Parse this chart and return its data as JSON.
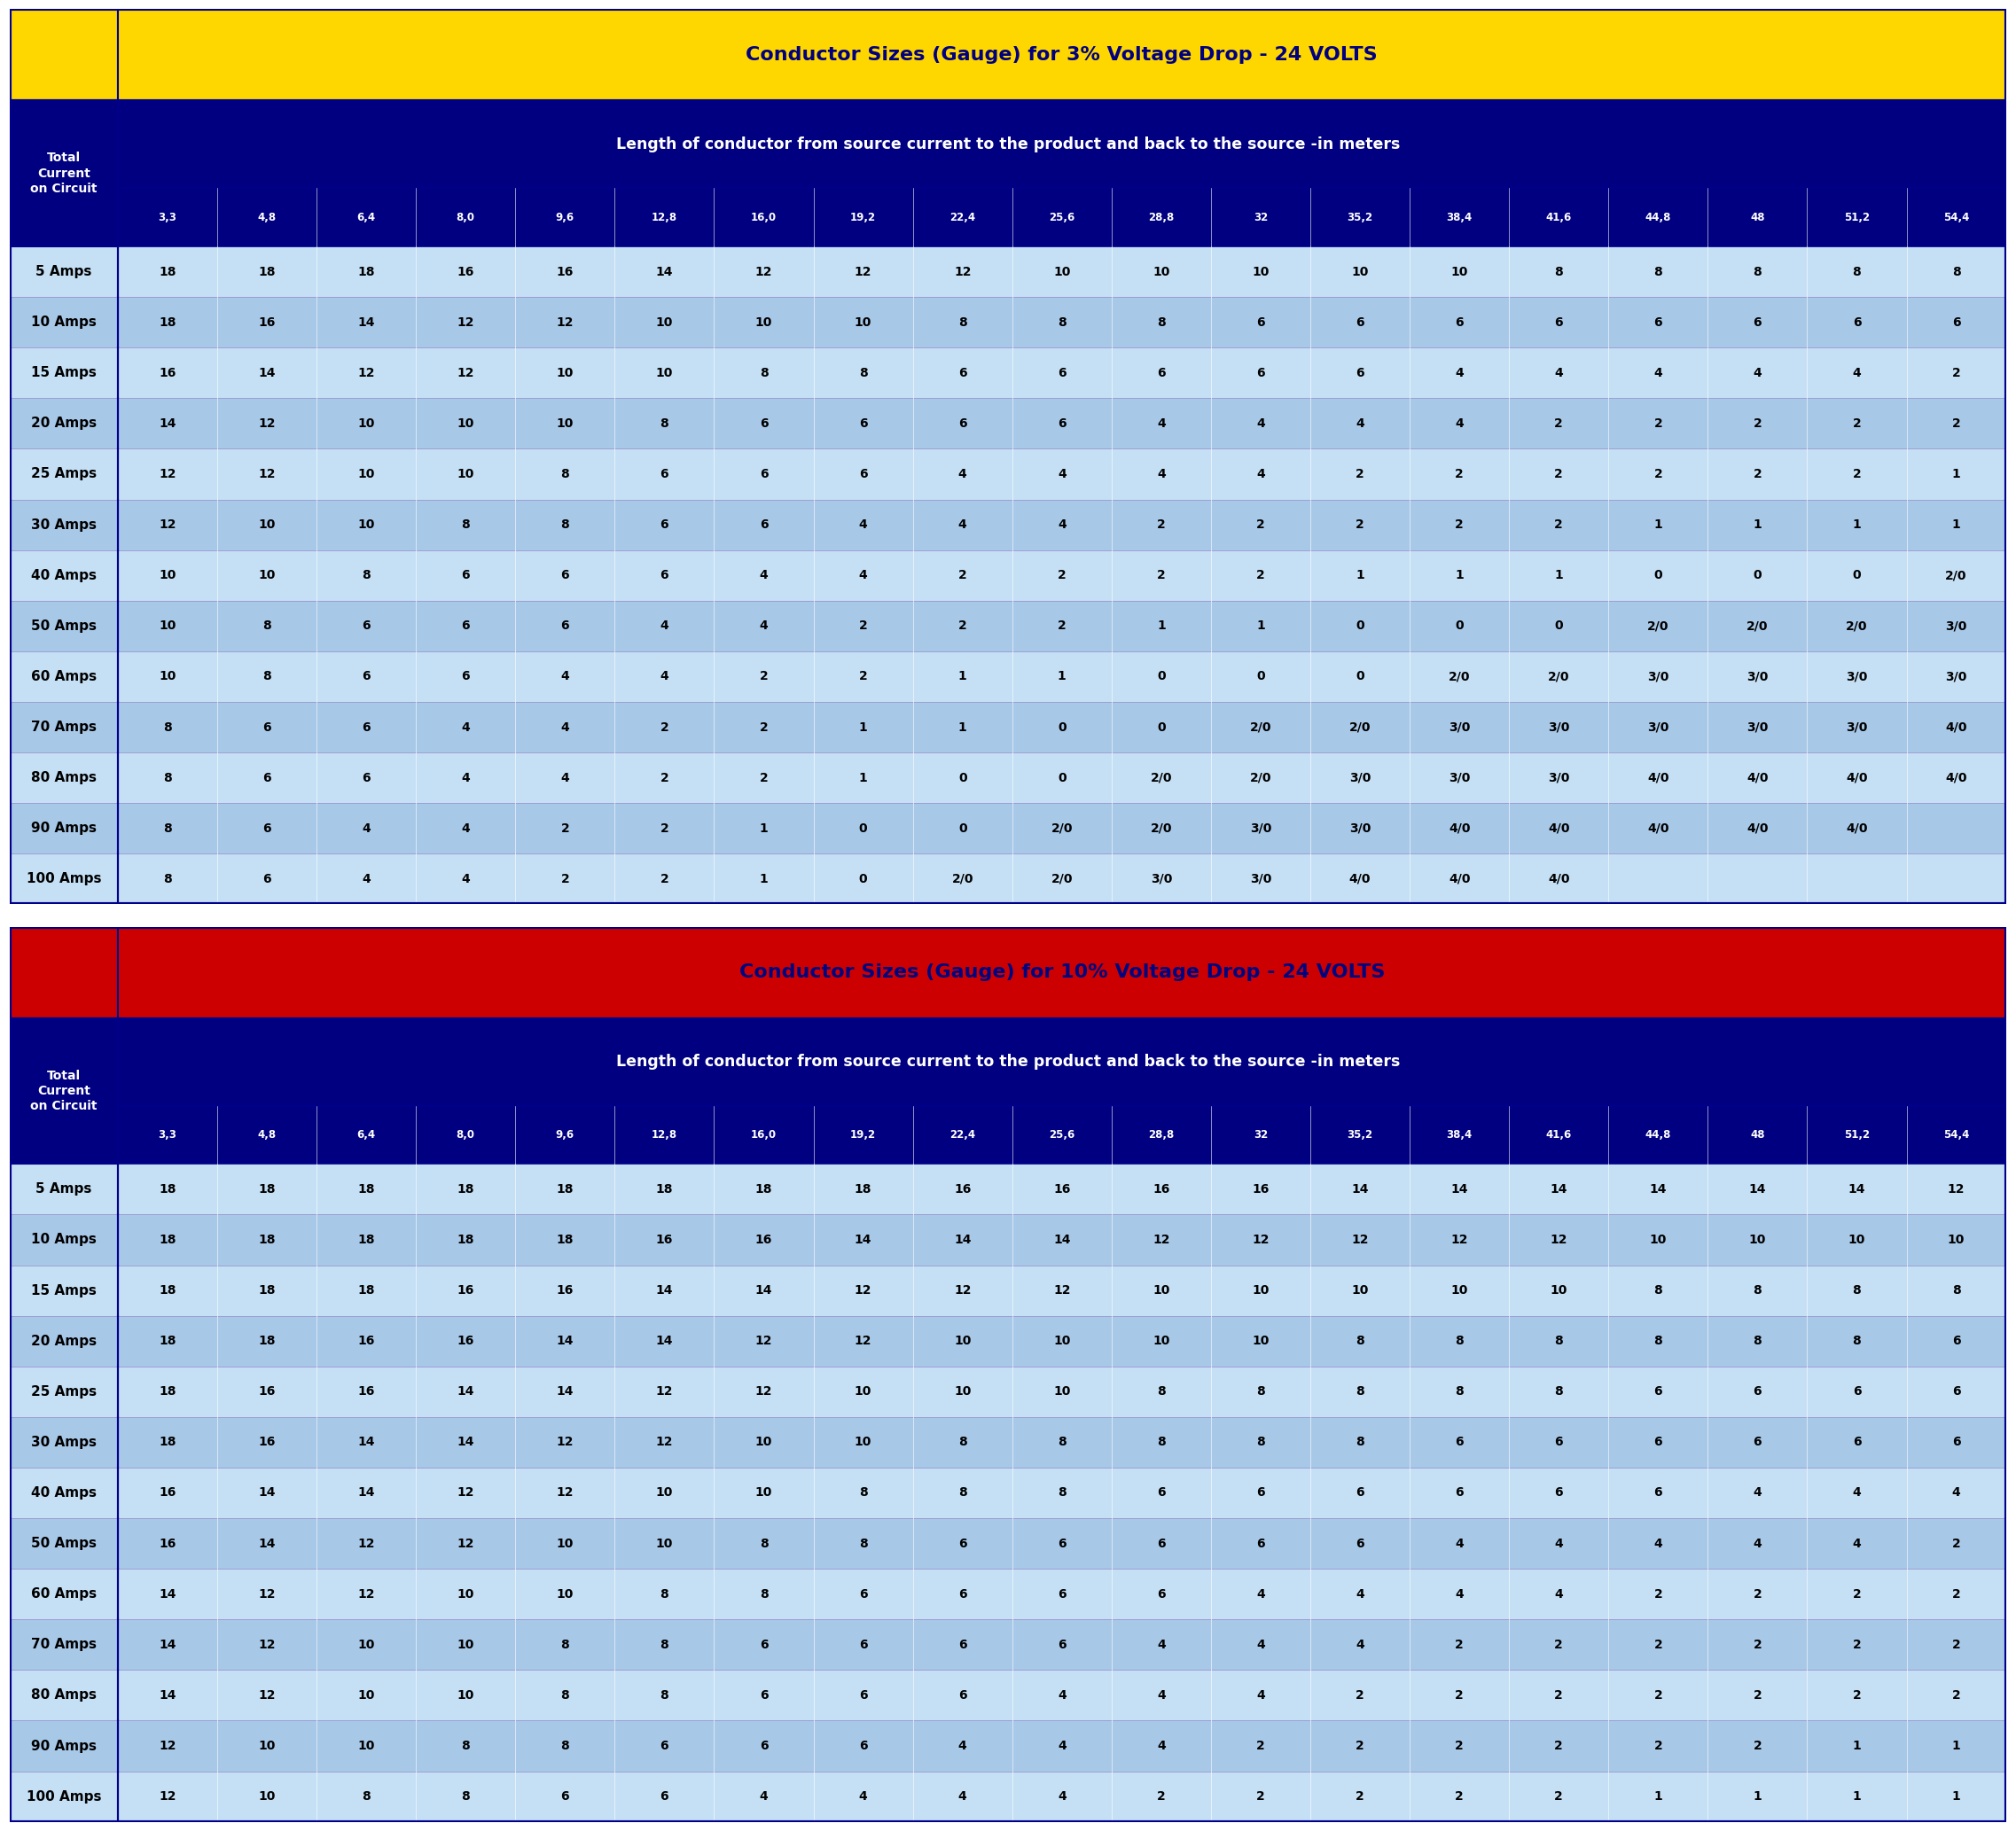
{
  "title_3pct": "Conductor Sizes (Gauge) for 3% Voltage Drop - 24 VOLTS",
  "title_10pct": "Conductor Sizes (Gauge) for 10% Voltage Drop - 24 VOLTS",
  "subtitle": "Length of conductor from source current to the product and back to the source -in meters",
  "header_left_text": "Total\nCurrent\non Circuit",
  "col_headers": [
    "3,3",
    "4,8",
    "6,4",
    "8,0",
    "9,6",
    "12,8",
    "16,0",
    "19,2",
    "22,4",
    "25,6",
    "28,8",
    "32",
    "35,2",
    "38,4",
    "41,6",
    "44,8",
    "48",
    "51,2",
    "54,4"
  ],
  "row_labels": [
    "5 Amps",
    "10 Amps",
    "15 Amps",
    "20 Amps",
    "25 Amps",
    "30 Amps",
    "40 Amps",
    "50 Amps",
    "60 Amps",
    "70 Amps",
    "80 Amps",
    "90 Amps",
    "100 Amps"
  ],
  "data_3pct": [
    [
      "18",
      "18",
      "18",
      "16",
      "16",
      "14",
      "12",
      "12",
      "12",
      "10",
      "10",
      "10",
      "10",
      "10",
      "8",
      "8",
      "8",
      "8",
      "8"
    ],
    [
      "18",
      "16",
      "14",
      "12",
      "12",
      "10",
      "10",
      "10",
      "8",
      "8",
      "8",
      "6",
      "6",
      "6",
      "6",
      "6",
      "6",
      "6",
      "6"
    ],
    [
      "16",
      "14",
      "12",
      "12",
      "10",
      "10",
      "8",
      "8",
      "6",
      "6",
      "6",
      "6",
      "6",
      "4",
      "4",
      "4",
      "4",
      "4",
      "2"
    ],
    [
      "14",
      "12",
      "10",
      "10",
      "10",
      "8",
      "6",
      "6",
      "6",
      "6",
      "4",
      "4",
      "4",
      "4",
      "2",
      "2",
      "2",
      "2",
      "2"
    ],
    [
      "12",
      "12",
      "10",
      "10",
      "8",
      "6",
      "6",
      "6",
      "4",
      "4",
      "4",
      "4",
      "2",
      "2",
      "2",
      "2",
      "2",
      "2",
      "1"
    ],
    [
      "12",
      "10",
      "10",
      "8",
      "8",
      "6",
      "6",
      "4",
      "4",
      "4",
      "2",
      "2",
      "2",
      "2",
      "2",
      "1",
      "1",
      "1",
      "1"
    ],
    [
      "10",
      "10",
      "8",
      "6",
      "6",
      "6",
      "4",
      "4",
      "2",
      "2",
      "2",
      "2",
      "1",
      "1",
      "1",
      "0",
      "0",
      "0",
      "2/0"
    ],
    [
      "10",
      "8",
      "6",
      "6",
      "6",
      "4",
      "4",
      "2",
      "2",
      "2",
      "1",
      "1",
      "0",
      "0",
      "0",
      "2/0",
      "2/0",
      "2/0",
      "3/0"
    ],
    [
      "10",
      "8",
      "6",
      "6",
      "4",
      "4",
      "2",
      "2",
      "1",
      "1",
      "0",
      "0",
      "0",
      "2/0",
      "2/0",
      "3/0",
      "3/0",
      "3/0",
      "3/0"
    ],
    [
      "8",
      "6",
      "6",
      "4",
      "4",
      "2",
      "2",
      "1",
      "1",
      "0",
      "0",
      "2/0",
      "2/0",
      "3/0",
      "3/0",
      "3/0",
      "3/0",
      "3/0",
      "4/0"
    ],
    [
      "8",
      "6",
      "6",
      "4",
      "4",
      "2",
      "2",
      "1",
      "0",
      "0",
      "2/0",
      "2/0",
      "3/0",
      "3/0",
      "3/0",
      "4/0",
      "4/0",
      "4/0",
      "4/0"
    ],
    [
      "8",
      "6",
      "4",
      "4",
      "2",
      "2",
      "1",
      "0",
      "0",
      "2/0",
      "2/0",
      "3/0",
      "3/0",
      "4/0",
      "4/0",
      "4/0",
      "4/0",
      "4/0",
      ""
    ],
    [
      "8",
      "6",
      "4",
      "4",
      "2",
      "2",
      "1",
      "0",
      "2/0",
      "2/0",
      "3/0",
      "3/0",
      "4/0",
      "4/0",
      "4/0",
      "",
      "",
      "",
      ""
    ]
  ],
  "data_10pct": [
    [
      "18",
      "18",
      "18",
      "18",
      "18",
      "18",
      "18",
      "18",
      "16",
      "16",
      "16",
      "16",
      "14",
      "14",
      "14",
      "14",
      "14",
      "14",
      "12"
    ],
    [
      "18",
      "18",
      "18",
      "18",
      "18",
      "16",
      "16",
      "14",
      "14",
      "14",
      "12",
      "12",
      "12",
      "12",
      "12",
      "10",
      "10",
      "10",
      "10"
    ],
    [
      "18",
      "18",
      "18",
      "16",
      "16",
      "14",
      "14",
      "12",
      "12",
      "12",
      "10",
      "10",
      "10",
      "10",
      "10",
      "8",
      "8",
      "8",
      "8"
    ],
    [
      "18",
      "18",
      "16",
      "16",
      "14",
      "14",
      "12",
      "12",
      "10",
      "10",
      "10",
      "10",
      "8",
      "8",
      "8",
      "8",
      "8",
      "8",
      "6"
    ],
    [
      "18",
      "16",
      "16",
      "14",
      "14",
      "12",
      "12",
      "10",
      "10",
      "10",
      "8",
      "8",
      "8",
      "8",
      "8",
      "6",
      "6",
      "6",
      "6"
    ],
    [
      "18",
      "16",
      "14",
      "14",
      "12",
      "12",
      "10",
      "10",
      "8",
      "8",
      "8",
      "8",
      "8",
      "6",
      "6",
      "6",
      "6",
      "6",
      "6"
    ],
    [
      "16",
      "14",
      "14",
      "12",
      "12",
      "10",
      "10",
      "8",
      "8",
      "8",
      "6",
      "6",
      "6",
      "6",
      "6",
      "6",
      "4",
      "4",
      "4"
    ],
    [
      "16",
      "14",
      "12",
      "12",
      "10",
      "10",
      "8",
      "8",
      "6",
      "6",
      "6",
      "6",
      "6",
      "4",
      "4",
      "4",
      "4",
      "4",
      "2"
    ],
    [
      "14",
      "12",
      "12",
      "10",
      "10",
      "8",
      "8",
      "6",
      "6",
      "6",
      "6",
      "4",
      "4",
      "4",
      "4",
      "2",
      "2",
      "2",
      "2"
    ],
    [
      "14",
      "12",
      "10",
      "10",
      "8",
      "8",
      "6",
      "6",
      "6",
      "6",
      "4",
      "4",
      "4",
      "2",
      "2",
      "2",
      "2",
      "2",
      "2"
    ],
    [
      "14",
      "12",
      "10",
      "10",
      "8",
      "8",
      "6",
      "6",
      "6",
      "4",
      "4",
      "4",
      "2",
      "2",
      "2",
      "2",
      "2",
      "2",
      "2"
    ],
    [
      "12",
      "10",
      "10",
      "8",
      "8",
      "6",
      "6",
      "6",
      "4",
      "4",
      "4",
      "2",
      "2",
      "2",
      "2",
      "2",
      "2",
      "1",
      "1"
    ],
    [
      "12",
      "10",
      "8",
      "8",
      "6",
      "6",
      "4",
      "4",
      "4",
      "4",
      "2",
      "2",
      "2",
      "2",
      "2",
      "1",
      "1",
      "1",
      "1"
    ]
  ],
  "bg_dark_blue": "#000080",
  "bg_yellow": "#FFD700",
  "bg_red": "#CC0000",
  "row_light1": "#C5E0F5",
  "row_light2": "#A8C8E8",
  "border_color": "#00008B"
}
